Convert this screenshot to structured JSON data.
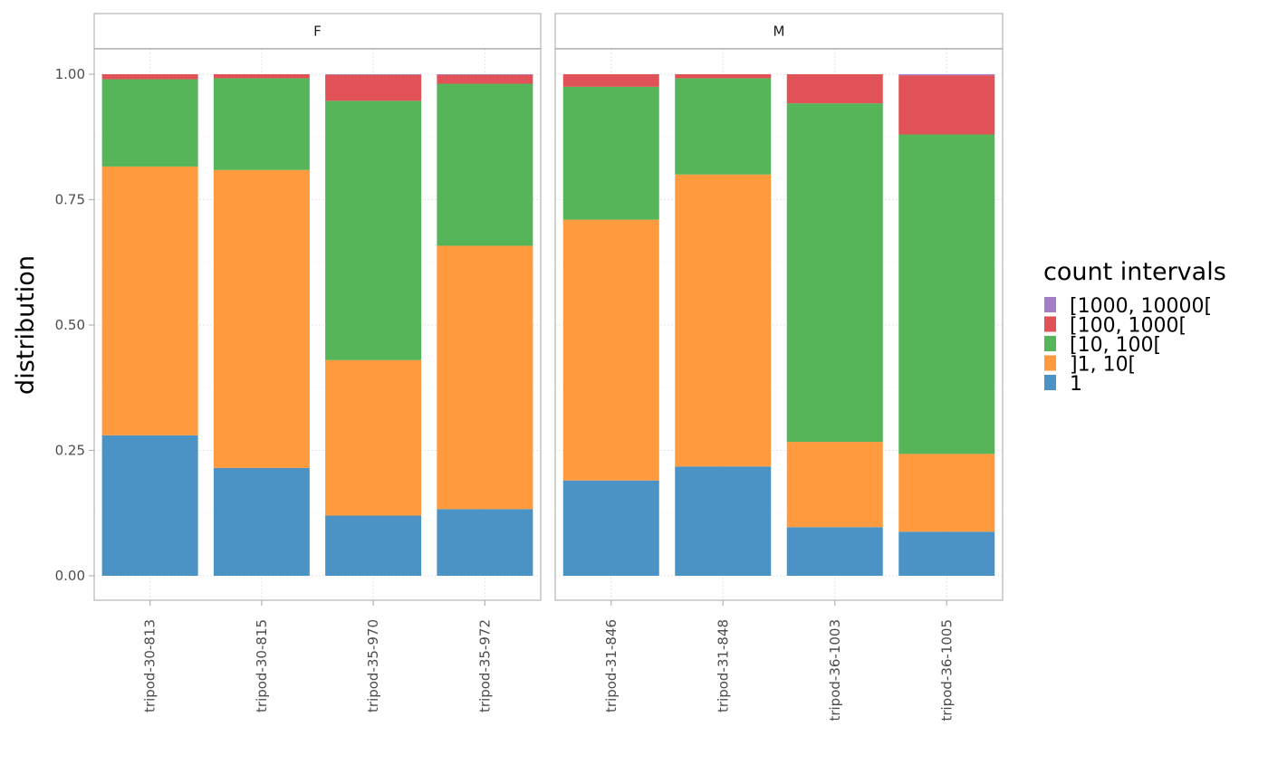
{
  "chart_data": {
    "type": "bar",
    "stacked": true,
    "ylabel": "distribution",
    "xlabel": "",
    "ylim": [
      0,
      1
    ],
    "y_ticks": [
      "0.00",
      "0.25",
      "0.50",
      "0.75",
      "1.00"
    ],
    "grid": true,
    "legend_position": "right",
    "legend": {
      "title": "count intervals",
      "entries": [
        {
          "label": "[1000, 10000[",
          "color": "#A37FC8"
        },
        {
          "label": "[100, 1000[",
          "color": "#E05257"
        },
        {
          "label": "[10, 100[",
          "color": "#57B559"
        },
        {
          "label": "]1, 10[",
          "color": "#FF9A3E"
        },
        {
          "label": "1",
          "color": "#4C93C5"
        }
      ]
    },
    "series_order_bottom_to_top": [
      "1",
      "]1, 10[",
      "[10, 100[",
      "[100, 1000[",
      "[1000, 10000["
    ],
    "facets": [
      {
        "label": "F",
        "categories": [
          "tripod-30-813",
          "tripod-30-815",
          "tripod-35-970",
          "tripod-35-972"
        ],
        "series": [
          {
            "name": "1",
            "values": [
              0.28,
              0.215,
              0.12,
              0.133
            ]
          },
          {
            "name": "]1, 10[",
            "values": [
              0.536,
              0.594,
              0.31,
              0.525
            ]
          },
          {
            "name": "[10, 100[",
            "values": [
              0.174,
              0.183,
              0.517,
              0.323
            ]
          },
          {
            "name": "[100, 1000[",
            "values": [
              0.01,
              0.008,
              0.052,
              0.018
            ]
          },
          {
            "name": "[1000, 10000[",
            "values": [
              0.0,
              0.0,
              0.001,
              0.001
            ]
          }
        ]
      },
      {
        "label": "M",
        "categories": [
          "tripod-31-846",
          "tripod-31-848",
          "tripod-36-1003",
          "tripod-36-1005"
        ],
        "series": [
          {
            "name": "1",
            "values": [
              0.19,
              0.218,
              0.097,
              0.088
            ]
          },
          {
            "name": "]1, 10[",
            "values": [
              0.52,
              0.582,
              0.17,
              0.155
            ]
          },
          {
            "name": "[10, 100[",
            "values": [
              0.265,
              0.192,
              0.675,
              0.637
            ]
          },
          {
            "name": "[100, 1000[",
            "values": [
              0.025,
              0.008,
              0.058,
              0.118
            ]
          },
          {
            "name": "[1000, 10000[",
            "values": [
              0.0,
              0.0,
              0.0,
              0.002
            ]
          }
        ]
      }
    ]
  }
}
